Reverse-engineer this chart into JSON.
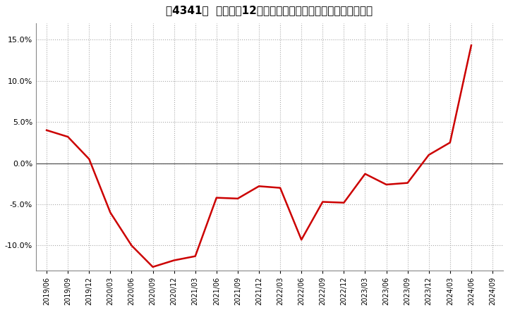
{
  "title": "［4341］  売上高の12か月移動合計の対前年同期増減率の推移",
  "line_color": "#cc0000",
  "background_color": "#ffffff",
  "plot_bg_color": "#ffffff",
  "grid_color": "#aaaaaa",
  "zero_line_color": "#555555",
  "ylim": [
    -0.13,
    0.17
  ],
  "yticks": [
    -0.1,
    -0.05,
    0.0,
    0.05,
    0.1,
    0.15
  ],
  "dates": [
    "2019/06",
    "2019/09",
    "2019/12",
    "2020/03",
    "2020/06",
    "2020/09",
    "2020/12",
    "2021/03",
    "2021/06",
    "2021/09",
    "2021/12",
    "2022/03",
    "2022/06",
    "2022/09",
    "2022/12",
    "2023/03",
    "2023/06",
    "2023/09",
    "2023/12",
    "2024/03",
    "2024/06",
    "2024/09"
  ],
  "values": [
    0.04,
    0.032,
    0.005,
    -0.06,
    -0.1,
    -0.126,
    -0.118,
    -0.113,
    -0.042,
    -0.043,
    -0.028,
    -0.03,
    -0.093,
    -0.047,
    -0.048,
    -0.013,
    -0.026,
    -0.024,
    0.01,
    0.025,
    0.143,
    null
  ]
}
